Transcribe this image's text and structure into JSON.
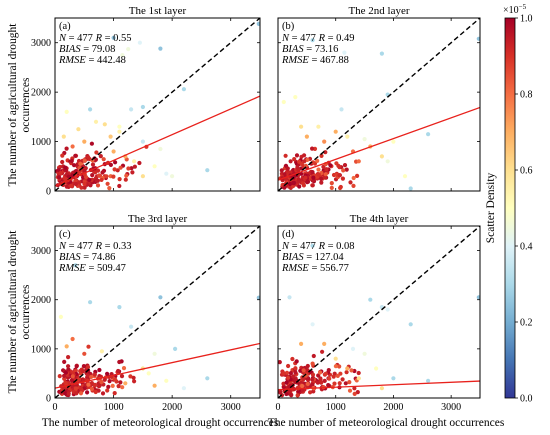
{
  "chart_data": {
    "type": "scatter",
    "xlabel": "The number of meteorological drought occurrences",
    "ylabel": "The number of agricultural drought occurrences",
    "xlim": [
      0,
      3500
    ],
    "ylim": [
      0,
      3500
    ],
    "xticks": [
      "0",
      "1000",
      "2000",
      "3000"
    ],
    "yticks": [
      "0",
      "1000",
      "2000",
      "3000"
    ],
    "colorbar": {
      "label": "Scatter Density",
      "exponent": "×10",
      "exponent_power": "−5",
      "range": [
        0,
        1
      ],
      "ticks": [
        "0.0",
        "0.2",
        "0.4",
        "0.6",
        "0.8",
        "1.0"
      ],
      "colors": [
        "#313695",
        "#4575b4",
        "#74add1",
        "#abd9e9",
        "#e0f3f8",
        "#ffffbf",
        "#fee090",
        "#fdae61",
        "#f46d43",
        "#d73027",
        "#a50026"
      ]
    },
    "panels": [
      {
        "tag": "(a)",
        "title": "The 1st layer",
        "n_text": "N",
        "n_val": " = 477 ",
        "r_text": "R",
        "r_val": " = 0.55",
        "bias_label": "BIAS",
        "bias_val": " = 79.08",
        "rmse_label": "RMSE",
        "rmse_val": " = 442.48",
        "fit": {
          "slope": 0.52,
          "intercept": 100
        },
        "points": [
          {
            "x": 3480,
            "y": 3380,
            "d": 0.25
          },
          {
            "x": 1150,
            "y": 2750,
            "d": 0.45
          },
          {
            "x": 1800,
            "y": 2880,
            "d": 0.25
          },
          {
            "x": 1000,
            "y": 3100,
            "d": 0.25
          },
          {
            "x": 1250,
            "y": 2870,
            "d": 0.45
          },
          {
            "x": 1450,
            "y": 3000,
            "d": 0.4
          },
          {
            "x": 2200,
            "y": 2060,
            "d": 0.3
          },
          {
            "x": 200,
            "y": 1600,
            "d": 0.5
          },
          {
            "x": 600,
            "y": 1650,
            "d": 0.3
          },
          {
            "x": 1300,
            "y": 1650,
            "d": 0.35
          },
          {
            "x": 1500,
            "y": 1700,
            "d": 0.3
          },
          {
            "x": 1500,
            "y": 1000,
            "d": 0.35
          },
          {
            "x": 2600,
            "y": 420,
            "d": 0.3
          },
          {
            "x": 1800,
            "y": 850,
            "d": 0.45
          },
          {
            "x": 1900,
            "y": 350,
            "d": 0.4
          },
          {
            "x": 2000,
            "y": 300,
            "d": 0.45
          },
          {
            "x": 1350,
            "y": 600,
            "d": 0.55
          },
          {
            "x": 700,
            "y": 1400,
            "d": 0.55
          },
          {
            "x": 850,
            "y": 1350,
            "d": 0.6
          },
          {
            "x": 950,
            "y": 1100,
            "d": 0.65
          },
          {
            "x": 1100,
            "y": 1200,
            "d": 0.55
          },
          {
            "x": 1700,
            "y": 500,
            "d": 0.5
          },
          {
            "x": 1200,
            "y": 700,
            "d": 0.7
          },
          {
            "x": 1000,
            "y": 800,
            "d": 0.7
          },
          {
            "x": 500,
            "y": 1000,
            "d": 0.7
          },
          {
            "x": 400,
            "y": 1250,
            "d": 0.6
          },
          {
            "x": 150,
            "y": 1100,
            "d": 0.6
          },
          {
            "x": 300,
            "y": 900,
            "d": 0.8
          },
          {
            "x": 1500,
            "y": 300,
            "d": 0.6
          },
          {
            "x": 1100,
            "y": 1300,
            "d": 0.5
          }
        ]
      },
      {
        "tag": "(b)",
        "title": "The 2nd layer",
        "n_text": "N",
        "n_val": " = 477 ",
        "r_text": "R",
        "r_val": " = 0.49",
        "bias_label": "BIAS",
        "bias_val": " = 73.16",
        "rmse_label": "RMSE",
        "rmse_val": " = 467.88",
        "fit": {
          "slope": 0.42,
          "intercept": 220
        },
        "points": [
          {
            "x": 3480,
            "y": 3080,
            "d": 0.25
          },
          {
            "x": 1150,
            "y": 2800,
            "d": 0.4
          },
          {
            "x": 1800,
            "y": 2780,
            "d": 0.3
          },
          {
            "x": 600,
            "y": 3050,
            "d": 0.3
          },
          {
            "x": 1900,
            "y": 1950,
            "d": 0.3
          },
          {
            "x": 2600,
            "y": 1150,
            "d": 0.3
          },
          {
            "x": 100,
            "y": 1800,
            "d": 0.5
          },
          {
            "x": 300,
            "y": 1900,
            "d": 0.5
          },
          {
            "x": 1100,
            "y": 1650,
            "d": 0.35
          },
          {
            "x": 700,
            "y": 1300,
            "d": 0.55
          },
          {
            "x": 1200,
            "y": 1100,
            "d": 0.55
          },
          {
            "x": 1500,
            "y": 1050,
            "d": 0.45
          },
          {
            "x": 1900,
            "y": 600,
            "d": 0.45
          },
          {
            "x": 2200,
            "y": 300,
            "d": 0.5
          },
          {
            "x": 2300,
            "y": 50,
            "d": 0.3
          },
          {
            "x": 1600,
            "y": 900,
            "d": 0.7
          },
          {
            "x": 1300,
            "y": 800,
            "d": 0.8
          },
          {
            "x": 1800,
            "y": 700,
            "d": 0.6
          },
          {
            "x": 1000,
            "y": 1200,
            "d": 0.7
          },
          {
            "x": 800,
            "y": 1000,
            "d": 0.75
          },
          {
            "x": 500,
            "y": 1100,
            "d": 0.7
          },
          {
            "x": 1400,
            "y": 600,
            "d": 0.8
          },
          {
            "x": 2000,
            "y": 1000,
            "d": 0.5
          },
          {
            "x": 400,
            "y": 1300,
            "d": 0.6
          }
        ]
      },
      {
        "tag": "(c)",
        "title": "The 3rd layer",
        "n_text": "N",
        "n_val": " = 477 ",
        "r_text": "R",
        "r_val": " = 0.33",
        "bias_label": "BIAS",
        "bias_val": " = 74.86",
        "rmse_label": "RMSE",
        "rmse_val": " = 509.47",
        "fit": {
          "slope": 0.26,
          "intercept": 200
        },
        "points": [
          {
            "x": 3480,
            "y": 2040,
            "d": 0.25
          },
          {
            "x": 350,
            "y": 2700,
            "d": 0.3
          },
          {
            "x": 1800,
            "y": 2050,
            "d": 0.25
          },
          {
            "x": 600,
            "y": 1950,
            "d": 0.3
          },
          {
            "x": 1100,
            "y": 1850,
            "d": 0.3
          },
          {
            "x": 1300,
            "y": 1450,
            "d": 0.35
          },
          {
            "x": 100,
            "y": 1650,
            "d": 0.5
          },
          {
            "x": 2050,
            "y": 1000,
            "d": 0.3
          },
          {
            "x": 2600,
            "y": 400,
            "d": 0.3
          },
          {
            "x": 800,
            "y": 950,
            "d": 0.55
          },
          {
            "x": 200,
            "y": 1050,
            "d": 0.7
          },
          {
            "x": 1700,
            "y": 900,
            "d": 0.45
          },
          {
            "x": 1500,
            "y": 600,
            "d": 0.6
          },
          {
            "x": 1700,
            "y": 250,
            "d": 0.7
          },
          {
            "x": 1900,
            "y": 350,
            "d": 0.5
          },
          {
            "x": 300,
            "y": 1200,
            "d": 0.8
          },
          {
            "x": 500,
            "y": 900,
            "d": 0.85
          },
          {
            "x": 1200,
            "y": 300,
            "d": 0.7
          },
          {
            "x": 1600,
            "y": 500,
            "d": 0.5
          },
          {
            "x": 2200,
            "y": 200,
            "d": 0.4
          }
        ]
      },
      {
        "tag": "(d)",
        "title": "The 4th layer",
        "n_text": "N",
        "n_val": " = 477 ",
        "r_text": "R",
        "r_val": " = 0.08",
        "bias_label": "BIAS",
        "bias_val": " = 127.04",
        "rmse_label": "RMSE",
        "rmse_val": " = 556.77",
        "fit": {
          "slope": 0.05,
          "intercept": 170
        },
        "points": [
          {
            "x": 3480,
            "y": 2050,
            "d": 0.25
          },
          {
            "x": 600,
            "y": 3100,
            "d": 0.3
          },
          {
            "x": 1800,
            "y": 1850,
            "d": 0.35
          },
          {
            "x": 1600,
            "y": 2000,
            "d": 0.3
          },
          {
            "x": 2300,
            "y": 1500,
            "d": 0.3
          },
          {
            "x": 200,
            "y": 2050,
            "d": 0.35
          },
          {
            "x": 600,
            "y": 1500,
            "d": 0.4
          },
          {
            "x": 1300,
            "y": 1000,
            "d": 0.4
          },
          {
            "x": 1500,
            "y": 900,
            "d": 0.45
          },
          {
            "x": 2000,
            "y": 400,
            "d": 0.3
          },
          {
            "x": 2600,
            "y": 350,
            "d": 0.3
          },
          {
            "x": 1900,
            "y": 1800,
            "d": 0.4
          },
          {
            "x": 1000,
            "y": 800,
            "d": 0.6
          },
          {
            "x": 1200,
            "y": 600,
            "d": 0.7
          },
          {
            "x": 1400,
            "y": 400,
            "d": 0.6
          },
          {
            "x": 800,
            "y": 1100,
            "d": 0.7
          },
          {
            "x": 600,
            "y": 700,
            "d": 0.85
          },
          {
            "x": 1700,
            "y": 600,
            "d": 0.5
          },
          {
            "x": 1800,
            "y": 200,
            "d": 0.6
          },
          {
            "x": 400,
            "y": 1100,
            "d": 0.7
          }
        ]
      }
    ]
  }
}
